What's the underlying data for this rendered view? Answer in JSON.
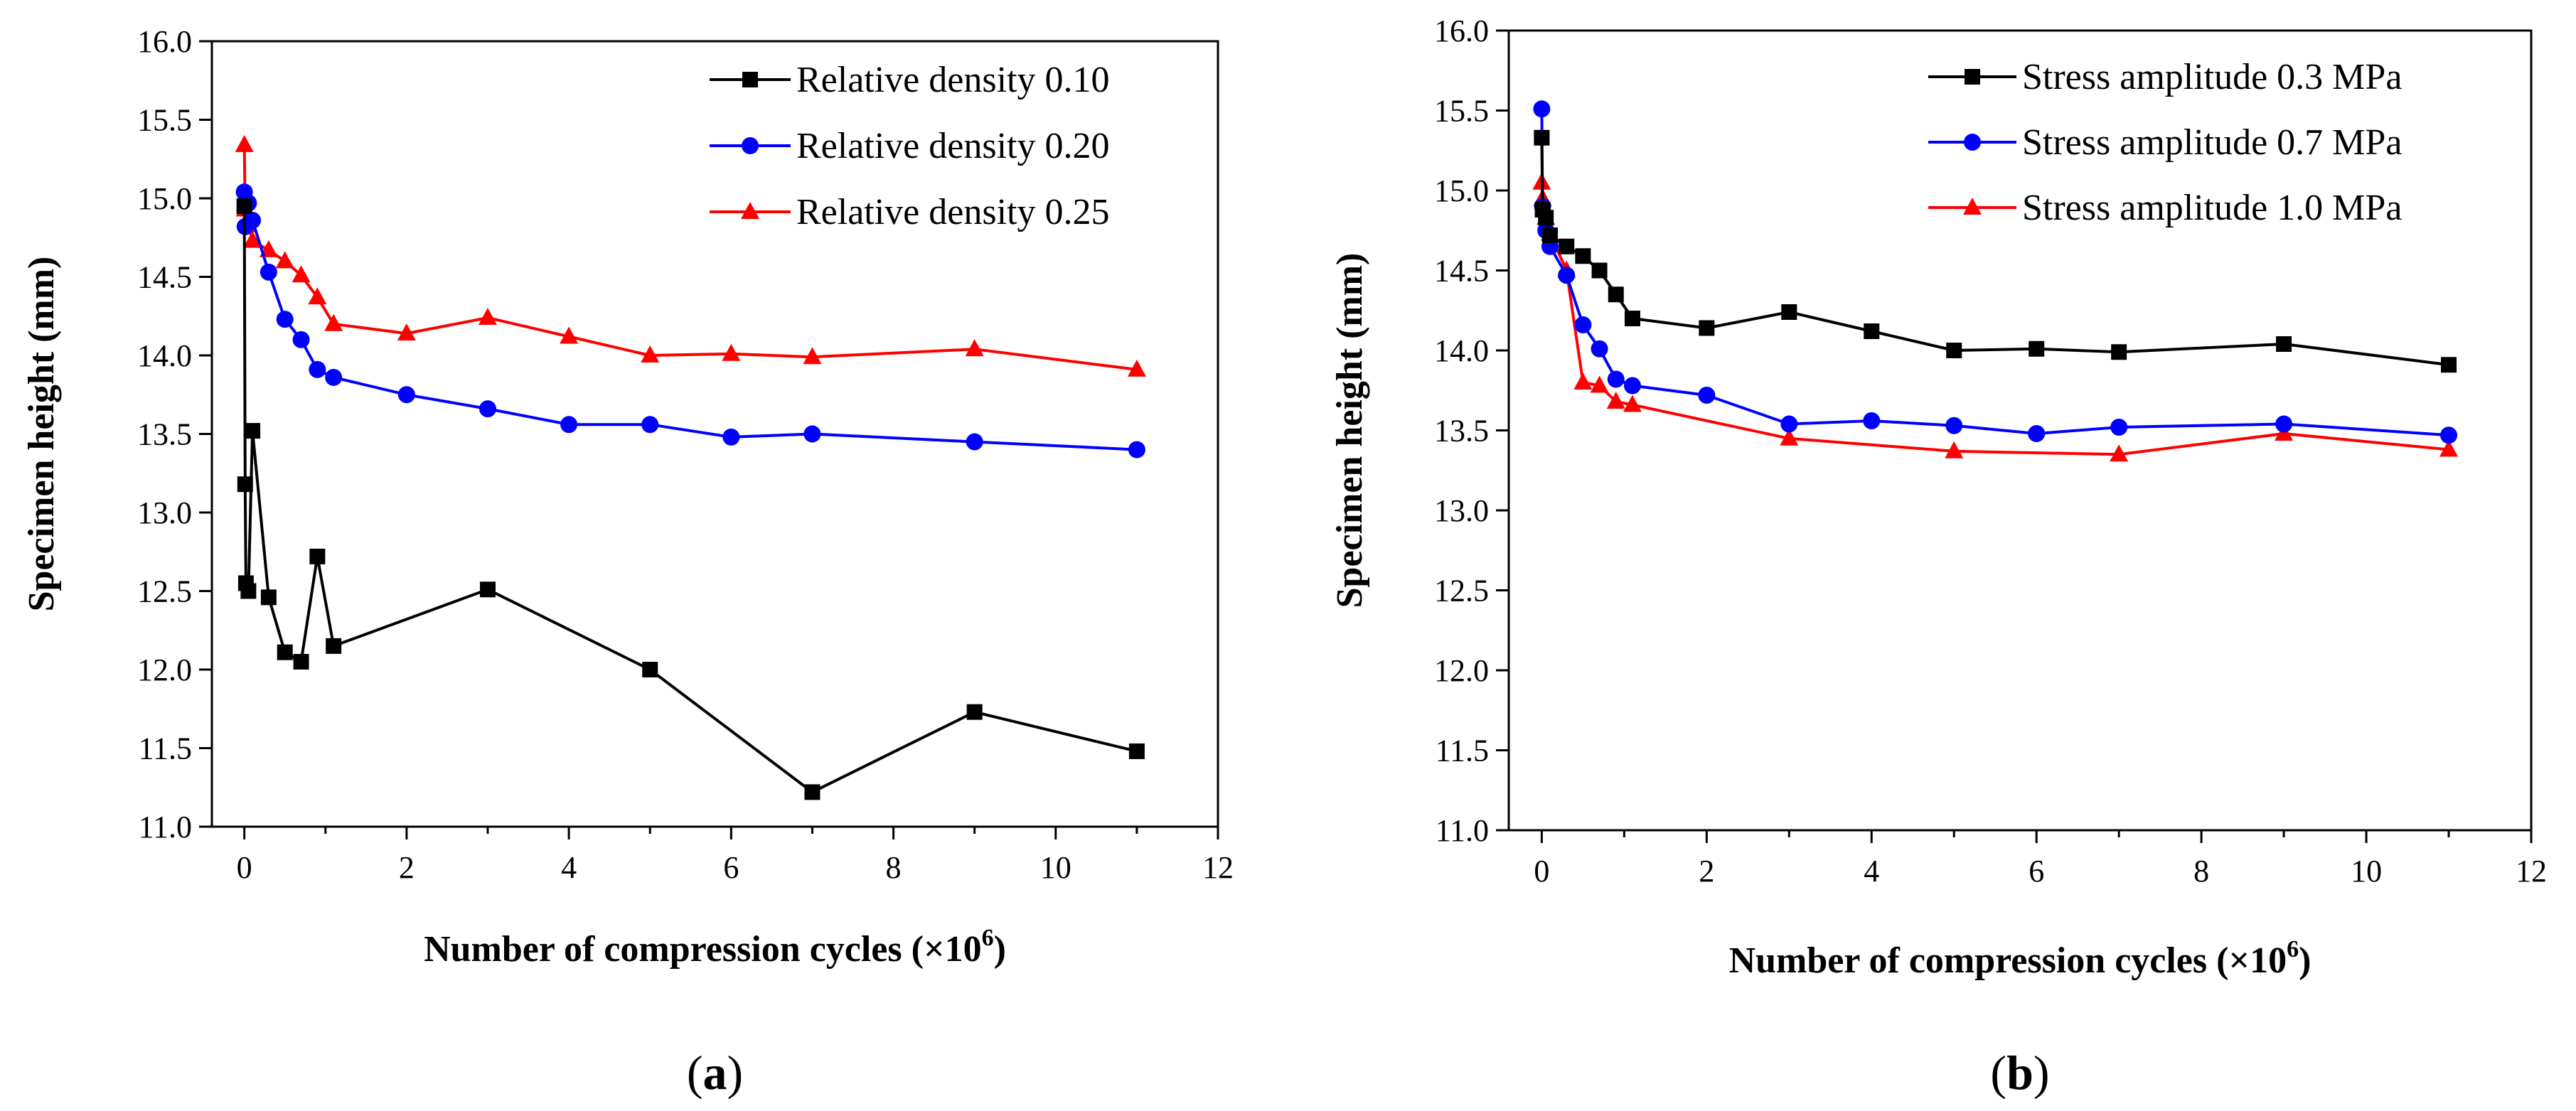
{
  "chart_data": [
    {
      "type": "line",
      "panel": "a",
      "panel_label": [
        "(",
        "a",
        ")"
      ],
      "xlabel": "Number of compression cycles (×10",
      "xlabel_sup": "6",
      "xlabel_end": ")",
      "ylabel": "Specimen height (mm)",
      "xlim": [
        -0.4,
        12
      ],
      "ylim": [
        11.0,
        16.0
      ],
      "xticks": [
        0,
        2,
        4,
        6,
        8,
        10,
        12
      ],
      "yticks": [
        11.0,
        11.5,
        12.0,
        12.5,
        13.0,
        13.5,
        14.0,
        14.5,
        15.0,
        15.5,
        16.0
      ],
      "legend_position": "top-right",
      "series": [
        {
          "name": "Relative density 0.10",
          "color": "#000000",
          "marker": "square",
          "x": [
            0,
            0.01,
            0.02,
            0.05,
            0.1,
            0.3,
            0.5,
            0.7,
            0.9,
            1.1,
            3,
            5,
            7,
            9,
            11
          ],
          "y": [
            14.95,
            13.18,
            12.55,
            12.5,
            13.52,
            12.46,
            12.11,
            12.05,
            12.72,
            12.15,
            12.51,
            12.0,
            11.22,
            11.73,
            11.48
          ]
        },
        {
          "name": "Relative density 0.20",
          "color": "#0000ff",
          "marker": "circle",
          "x": [
            0,
            0.01,
            0.05,
            0.1,
            0.3,
            0.5,
            0.7,
            0.9,
            1.1,
            2,
            3,
            4,
            5,
            6,
            7,
            9,
            11
          ],
          "y": [
            15.04,
            14.82,
            14.97,
            14.86,
            14.53,
            14.23,
            14.1,
            13.91,
            13.86,
            13.75,
            13.66,
            13.56,
            13.56,
            13.48,
            13.5,
            13.45,
            13.4
          ]
        },
        {
          "name": "Relative density 0.25",
          "color": "#ff0000",
          "marker": "triangle",
          "x": [
            0,
            0.01,
            0.05,
            0.1,
            0.3,
            0.5,
            0.7,
            0.9,
            1.1,
            2,
            3,
            4,
            5,
            6,
            7,
            9,
            11
          ],
          "y": [
            15.34,
            14.93,
            14.83,
            14.73,
            14.67,
            14.6,
            14.51,
            14.37,
            14.2,
            14.14,
            14.24,
            14.12,
            14.0,
            14.01,
            13.99,
            14.04,
            13.91
          ]
        }
      ]
    },
    {
      "type": "line",
      "panel": "b",
      "panel_label": [
        "(",
        "b",
        ")"
      ],
      "xlabel": "Number of compression cycles (×10",
      "xlabel_sup": "6",
      "xlabel_end": ")",
      "ylabel": "Specimen height (mm)",
      "xlim": [
        -0.4,
        12
      ],
      "ylim": [
        11.0,
        16.0
      ],
      "xticks": [
        0,
        2,
        4,
        6,
        8,
        10,
        12
      ],
      "yticks": [
        11.0,
        11.5,
        12.0,
        12.5,
        13.0,
        13.5,
        14.0,
        14.5,
        15.0,
        15.5,
        16.0
      ],
      "legend_position": "top-right",
      "series": [
        {
          "name": "Stress amplitude 0.3 MPa",
          "color": "#000000",
          "marker": "square",
          "x": [
            0,
            0.01,
            0.05,
            0.1,
            0.3,
            0.5,
            0.7,
            0.9,
            1.1,
            2,
            3,
            4,
            5,
            6,
            7,
            9,
            11
          ],
          "y": [
            15.33,
            14.88,
            14.83,
            14.72,
            14.65,
            14.59,
            14.5,
            14.35,
            14.2,
            14.14,
            14.24,
            14.12,
            14.0,
            14.01,
            13.99,
            14.04,
            13.91
          ]
        },
        {
          "name": "Stress amplitude 0.7 MPa",
          "color": "#0000ff",
          "marker": "circle",
          "x": [
            0,
            0.01,
            0.05,
            0.1,
            0.3,
            0.5,
            0.7,
            0.9,
            1.1,
            2,
            3,
            4,
            5,
            6,
            7,
            9,
            11
          ],
          "y": [
            15.51,
            14.9,
            14.75,
            14.65,
            14.47,
            14.16,
            14.01,
            13.82,
            13.78,
            13.72,
            13.54,
            13.56,
            13.53,
            13.48,
            13.52,
            13.54,
            13.47
          ]
        },
        {
          "name": "Stress amplitude 1.0 MPa",
          "color": "#ff0000",
          "marker": "triangle",
          "x": [
            0,
            0.01,
            0.05,
            0.1,
            0.3,
            0.5,
            0.7,
            0.9,
            1.1,
            3,
            5,
            7,
            9,
            11
          ],
          "y": [
            15.05,
            14.95,
            14.83,
            14.73,
            14.5,
            13.8,
            13.78,
            13.68,
            13.66,
            13.45,
            13.37,
            13.35,
            13.48,
            13.38
          ]
        }
      ]
    }
  ]
}
